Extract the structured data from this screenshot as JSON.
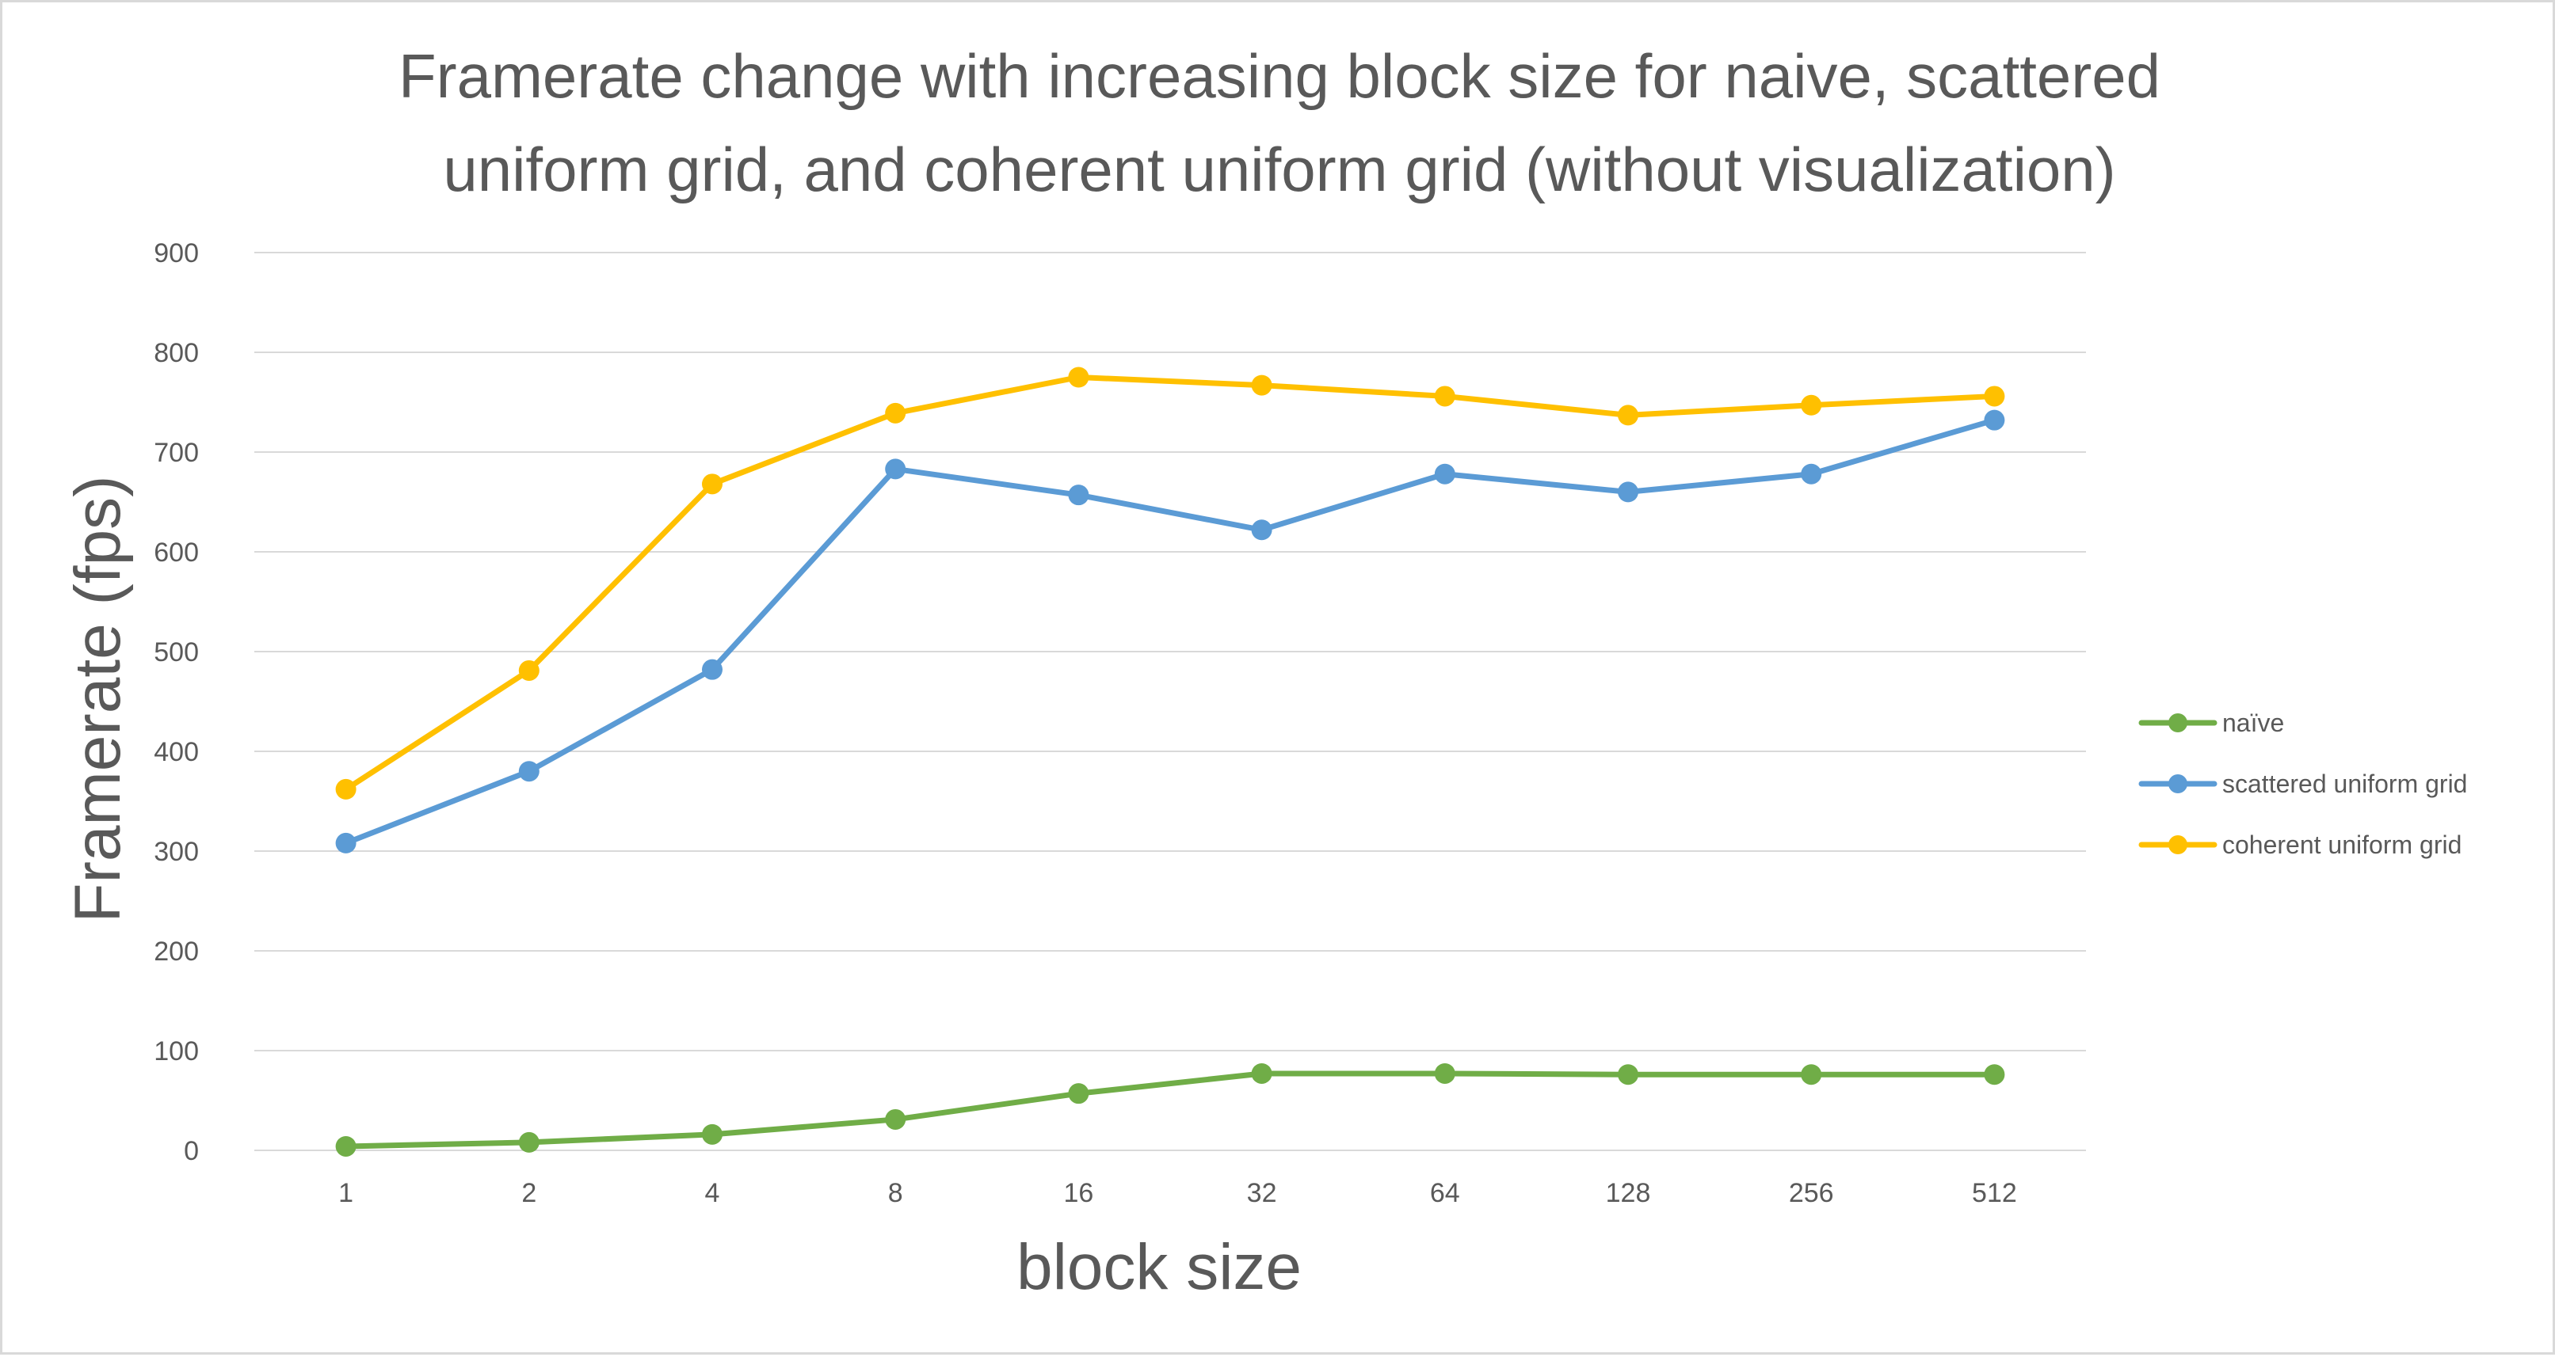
{
  "chart_data": {
    "type": "line",
    "title": "Framerate change with increasing block size for naive, scattered uniform grid, and coherent uniform grid (without visualization)",
    "title_lines": [
      "Framerate change with increasing block size for naive, scattered",
      "uniform grid, and coherent uniform grid (without visualization)"
    ],
    "xlabel": "block size",
    "ylabel": "Framerate (fps)",
    "categories": [
      "1",
      "2",
      "4",
      "8",
      "16",
      "32",
      "64",
      "128",
      "256",
      "512"
    ],
    "ylim": [
      0,
      900
    ],
    "yticks": [
      0,
      100,
      200,
      300,
      400,
      500,
      600,
      700,
      800,
      900
    ],
    "grid": true,
    "legend_position": "right",
    "series": [
      {
        "name": "naïve",
        "color": "#70ad47",
        "values": [
          4,
          8,
          16,
          31,
          57,
          77,
          77,
          76,
          76,
          76
        ]
      },
      {
        "name": "scattered uniform grid",
        "color": "#5b9bd5",
        "values": [
          308,
          380,
          482,
          683,
          657,
          622,
          678,
          660,
          678,
          732
        ]
      },
      {
        "name": "coherent uniform grid",
        "color": "#ffc000",
        "values": [
          362,
          481,
          668,
          739,
          775,
          767,
          756,
          737,
          747,
          756
        ]
      }
    ]
  }
}
